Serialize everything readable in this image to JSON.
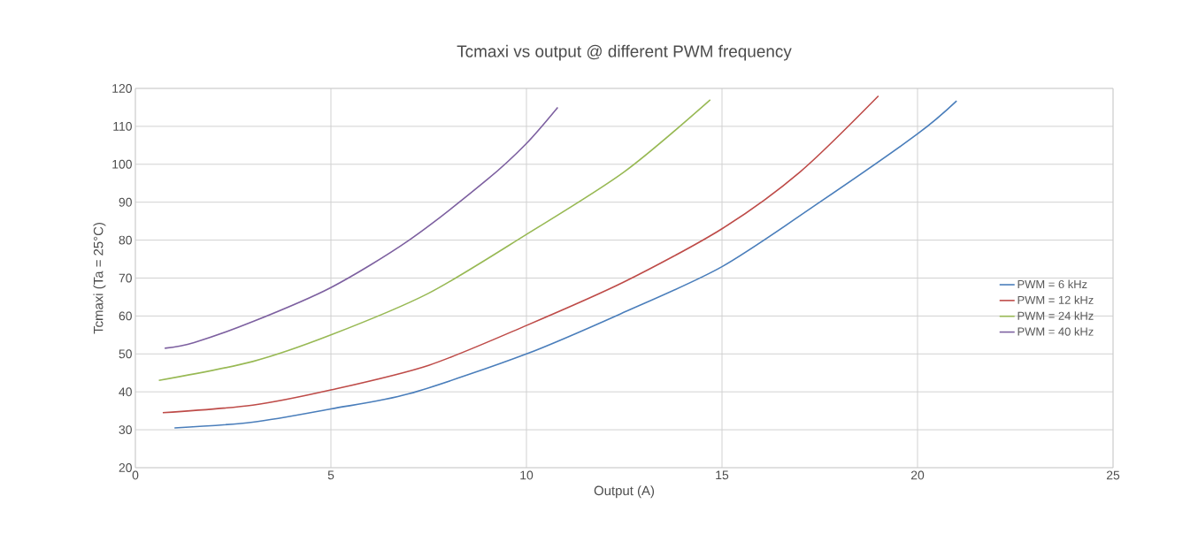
{
  "chart_data": {
    "type": "line",
    "title": "Tcmaxi vs output @ different PWM frequency",
    "xlabel": "Output (A)",
    "ylabel": "Tcmaxi (Ta = 25°C)",
    "xlim": [
      0,
      25
    ],
    "xticks": [
      0,
      5,
      10,
      15,
      20,
      25
    ],
    "ylim": [
      20,
      120
    ],
    "yticks": [
      20,
      30,
      40,
      50,
      60,
      70,
      80,
      90,
      100,
      110,
      120
    ],
    "grid": true,
    "legend": "right",
    "marker": "none",
    "line_style": "solid",
    "series": [
      {
        "name": "PWM = 6 kHz",
        "color": "#4a7ebb",
        "x": [
          1.0,
          3,
          5,
          7,
          10,
          12.5,
          15,
          17.5,
          20,
          21
        ],
        "values": [
          30.5,
          32,
          35.5,
          39.5,
          50,
          61,
          73,
          90,
          108,
          116.7
        ]
      },
      {
        "name": "PWM = 12 kHz",
        "color": "#be4b48",
        "x": [
          0.7,
          3,
          5,
          7.5,
          10,
          12.5,
          15,
          17,
          19
        ],
        "values": [
          34.5,
          36.5,
          40.5,
          47,
          57.5,
          69,
          83,
          98,
          118
        ]
      },
      {
        "name": "PWM = 24 kHz",
        "color": "#98b954",
        "x": [
          0.6,
          3,
          5,
          7.5,
          10,
          12.5,
          14.7
        ],
        "values": [
          43,
          48,
          55,
          66,
          81.5,
          98,
          117
        ]
      },
      {
        "name": "PWM = 40 kHz",
        "color": "#7d60a0",
        "x": [
          0.75,
          1.5,
          3,
          5,
          7,
          9,
          10,
          10.8
        ],
        "values": [
          51.5,
          53,
          58.5,
          67.5,
          80,
          96,
          105.5,
          115
        ]
      }
    ]
  }
}
